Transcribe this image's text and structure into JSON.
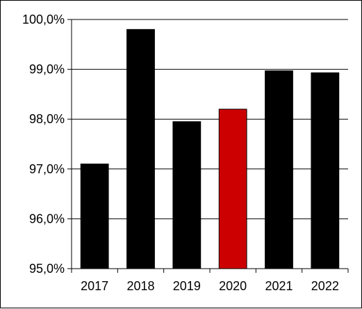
{
  "chart_data": {
    "type": "bar",
    "title": "",
    "xlabel": "",
    "ylabel": "",
    "categories": [
      "2017",
      "2018",
      "2019",
      "2020",
      "2021",
      "2022"
    ],
    "values": [
      97.1,
      99.8,
      97.95,
      98.2,
      98.97,
      98.93
    ],
    "ylim": [
      95,
      100
    ],
    "yticks": [
      95,
      96,
      97,
      98,
      99,
      100
    ],
    "ytick_labels": [
      "95,0%",
      "96,0%",
      "97,0%",
      "98,0%",
      "99,0%",
      "100,0%"
    ],
    "grid": true,
    "colors": {
      "default_bar": "#000000",
      "highlight_bar": "#cc0000",
      "gridline": "#000000"
    },
    "highlight_category": "2020"
  }
}
